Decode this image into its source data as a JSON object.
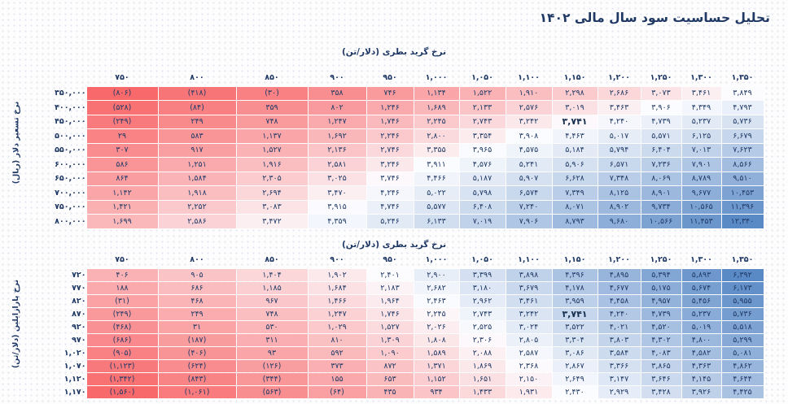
{
  "title": "تحلیل حساسیت سود سال مالی ۱۴۰۲",
  "text_color": "#1F3864",
  "chart_data": [
    {
      "type": "heatmap",
      "title": "نرخ گرید بطری (دلار/تن)",
      "ylabel": "نرخ تسعیر دلار (ریال)",
      "legend_position": "none",
      "grid": false,
      "columns": [
        "۷۵۰",
        "۸۰۰",
        "۸۵۰",
        "۹۰۰",
        "۹۵۰",
        "۱,۰۰۰",
        "۱,۰۵۰",
        "۱,۱۰۰",
        "۱,۱۵۰",
        "۱,۲۰۰",
        "۱,۲۵۰",
        "۱,۳۰۰",
        "۱,۳۵۰"
      ],
      "row_labels": [
        "۳۵۰,۰۰۰",
        "۴۰۰,۰۰۰",
        "۴۵۰,۰۰۰",
        "۵۰۰,۰۰۰",
        "۵۵۰,۰۰۰",
        "۶۰۰,۰۰۰",
        "۶۵۰,۰۰۰",
        "۷۰۰,۰۰۰",
        "۷۵۰,۰۰۰",
        "۸۰۰,۰۰۰"
      ],
      "values": [
        [
          -806,
          -418,
          -30,
          358,
          746,
          1134,
          1522,
          1910,
          2298,
          2686,
          3073,
          3461,
          3849
        ],
        [
          -528,
          -84,
          359,
          802,
          1246,
          1689,
          2133,
          2576,
          3019,
          3463,
          3906,
          4349,
          4793
        ],
        [
          -249,
          249,
          748,
          1247,
          1746,
          2245,
          2743,
          3242,
          3741,
          4240,
          4739,
          5237,
          5736
        ],
        [
          29,
          583,
          1137,
          1692,
          2246,
          2800,
          3354,
          3908,
          4463,
          5017,
          5571,
          6125,
          6679
        ],
        [
          307,
          917,
          1527,
          2136,
          2746,
          3355,
          3965,
          4575,
          5184,
          5794,
          6404,
          7013,
          7623
        ],
        [
          586,
          1251,
          1916,
          2581,
          3246,
          3911,
          4576,
          5241,
          5906,
          6571,
          7236,
          7901,
          8566
        ],
        [
          864,
          1584,
          2305,
          3025,
          3746,
          4466,
          5187,
          5907,
          6628,
          7348,
          8069,
          8789,
          9510
        ],
        [
          1142,
          1918,
          2694,
          3470,
          4246,
          5022,
          5798,
          6574,
          7349,
          8125,
          8901,
          9677,
          10453
        ],
        [
          1421,
          2252,
          3083,
          3915,
          4746,
          5577,
          6408,
          7240,
          8071,
          8902,
          9734,
          10565,
          11396
        ],
        [
          1699,
          2586,
          3472,
          4359,
          5246,
          6133,
          7019,
          7906,
          8793,
          9680,
          10566,
          11453,
          12340
        ]
      ],
      "bold_cell": {
        "row": 2,
        "col": 8
      },
      "colorscale": {
        "low": "#F8696B",
        "mid": "#FCFCFF",
        "high": "#5A8AC6"
      }
    },
    {
      "type": "heatmap",
      "title": "نرخ گرید بطری (دلار/تن)",
      "ylabel": "نرخ پارازایلین (دلار/تن)",
      "legend_position": "none",
      "grid": false,
      "columns": [
        "۷۵۰",
        "۸۰۰",
        "۸۵۰",
        "۹۰۰",
        "۹۵۰",
        "۱,۰۰۰",
        "۱,۰۵۰",
        "۱,۱۰۰",
        "۱,۱۵۰",
        "۱,۲۰۰",
        "۱,۲۵۰",
        "۱,۳۰۰",
        "۱,۳۵۰"
      ],
      "row_labels": [
        "۷۲۰",
        "۷۷۰",
        "۸۲۰",
        "۸۷۰",
        "۹۲۰",
        "۹۷۰",
        "۱,۰۲۰",
        "۱,۰۷۰",
        "۱,۱۲۰",
        "۱,۱۷۰"
      ],
      "values": [
        [
          406,
          905,
          1404,
          1902,
          2401,
          2900,
          3399,
          3898,
          4396,
          4895,
          5394,
          5893,
          6392
        ],
        [
          188,
          686,
          1185,
          1684,
          2183,
          2682,
          3180,
          3679,
          4178,
          4677,
          5175,
          5674,
          6173
        ],
        [
          -31,
          468,
          967,
          1466,
          1964,
          2463,
          2962,
          3461,
          3959,
          4458,
          4957,
          5456,
          5955
        ],
        [
          -249,
          249,
          748,
          1247,
          1746,
          2245,
          2743,
          3242,
          3741,
          4240,
          4739,
          5237,
          5736
        ],
        [
          -468,
          31,
          530,
          1029,
          1527,
          2026,
          2525,
          3024,
          3522,
          4021,
          4520,
          5019,
          5518
        ],
        [
          -686,
          -187,
          311,
          810,
          1309,
          1808,
          2306,
          2805,
          3304,
          3803,
          4302,
          4800,
          5299
        ],
        [
          -905,
          -406,
          93,
          592,
          1090,
          1589,
          2088,
          2587,
          3086,
          3584,
          4083,
          4582,
          5081
        ],
        [
          -1123,
          -624,
          -126,
          373,
          872,
          1371,
          1869,
          2368,
          2867,
          3366,
          3865,
          4363,
          4862
        ],
        [
          -1342,
          -843,
          -344,
          155,
          653,
          1152,
          1651,
          2150,
          2649,
          3147,
          3646,
          4145,
          4644
        ],
        [
          -1560,
          -1061,
          -563,
          -64,
          435,
          934,
          1433,
          1931,
          2430,
          2929,
          3428,
          3926,
          4425
        ]
      ],
      "bold_cell": {
        "row": 3,
        "col": 8
      },
      "colorscale": {
        "low": "#F8696B",
        "mid": "#FCFCFF",
        "high": "#5A8AC6"
      }
    }
  ]
}
